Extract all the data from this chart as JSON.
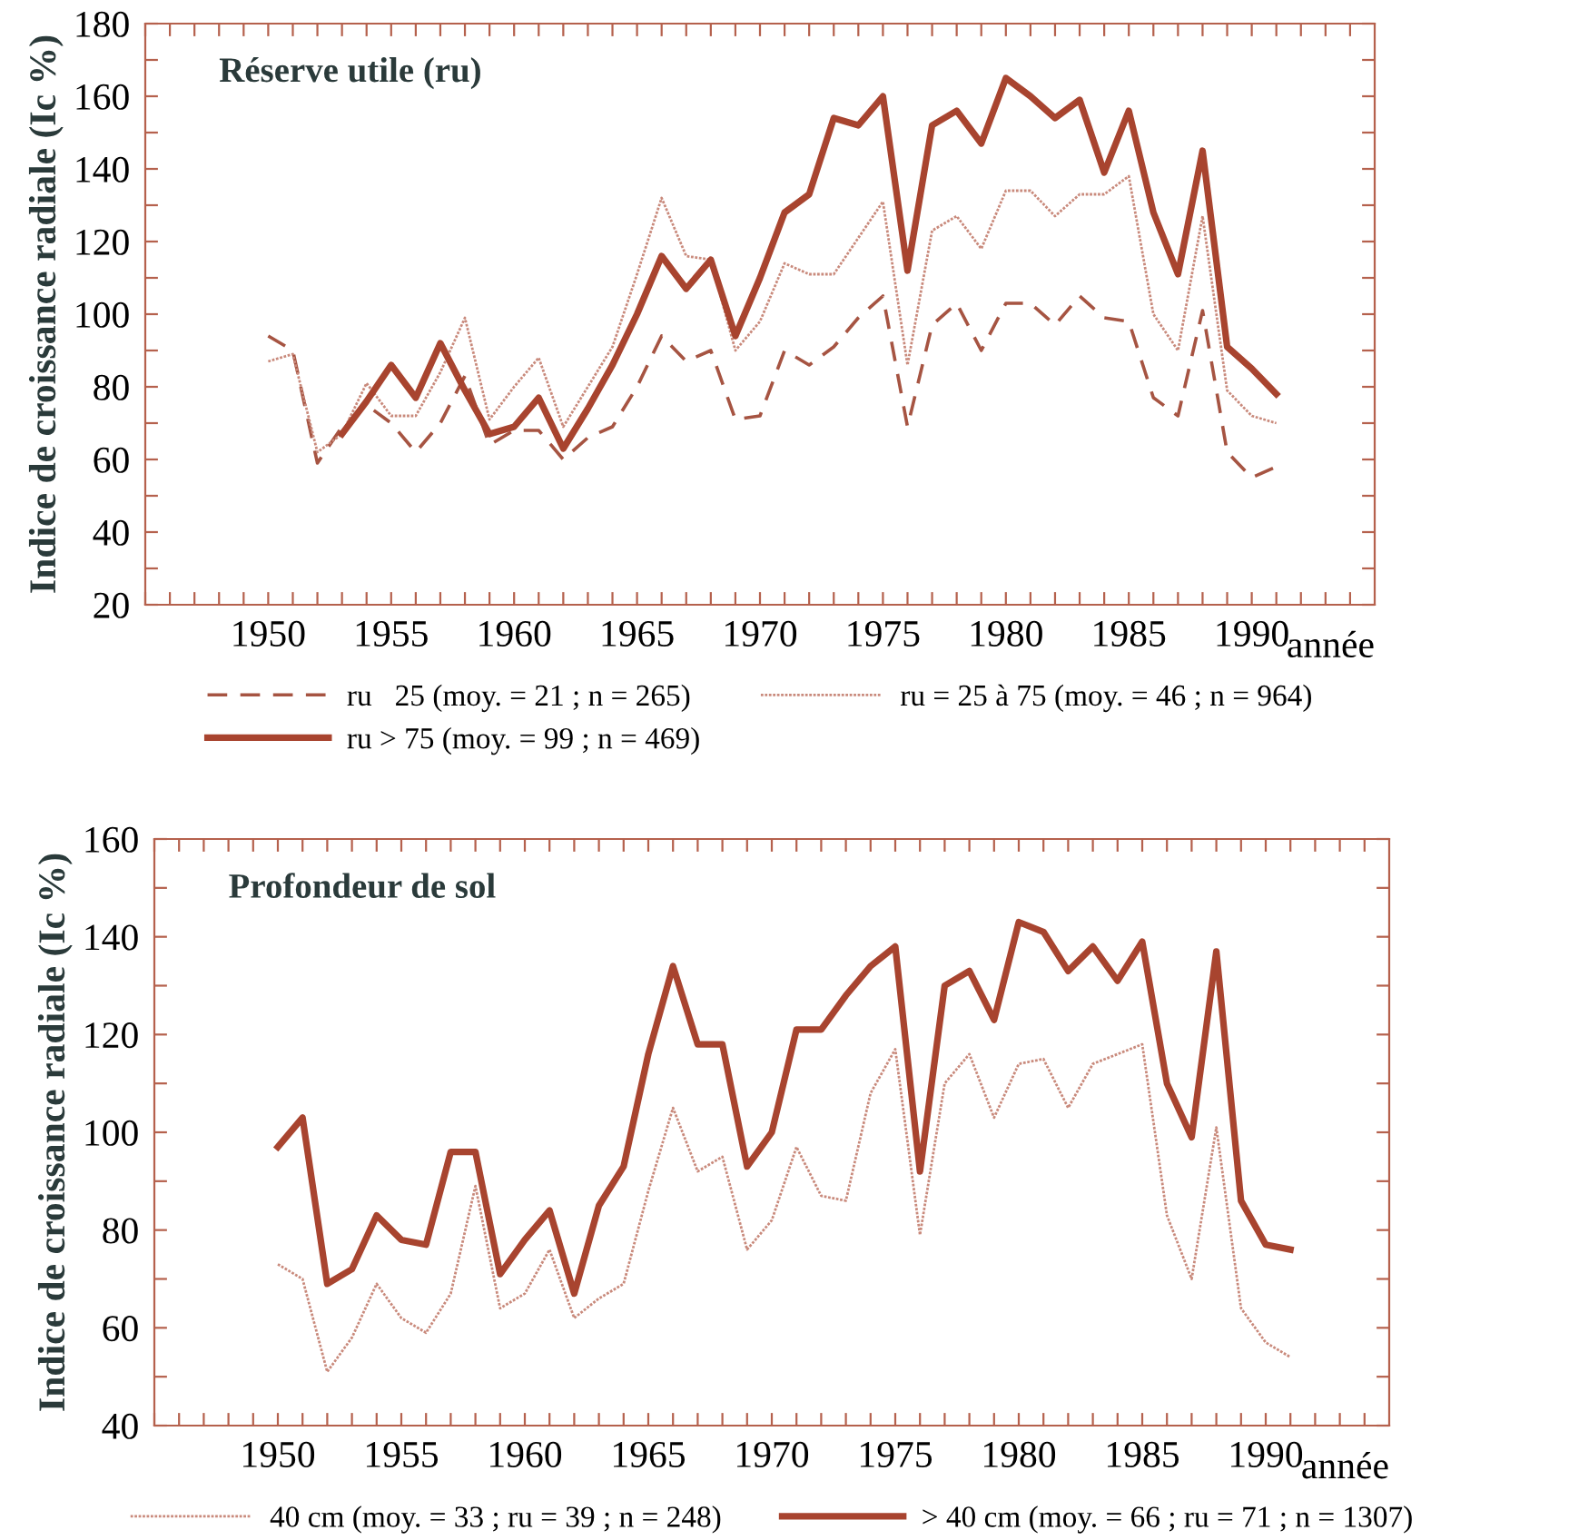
{
  "chart_data": [
    {
      "type": "line",
      "title": "Réserve utile (ru)",
      "xlabel": "année",
      "ylabel": "Indice de croissance radiale (Ic %)",
      "x": [
        1950,
        1951,
        1952,
        1953,
        1954,
        1955,
        1956,
        1957,
        1958,
        1959,
        1960,
        1961,
        1962,
        1963,
        1964,
        1965,
        1966,
        1967,
        1968,
        1969,
        1970,
        1971,
        1972,
        1973,
        1974,
        1975,
        1976,
        1977,
        1978,
        1979,
        1980,
        1981,
        1982,
        1983,
        1984,
        1985,
        1986,
        1987,
        1988,
        1989,
        1990,
        1991
      ],
      "series": [
        {
          "name": "ru   25 (moy. = 21 ; n = 265)",
          "color": "#a65442",
          "line_style": "dashed",
          "values": [
            94,
            90,
            59,
            69,
            75,
            70,
            62,
            70,
            83,
            64,
            68,
            68,
            60,
            66,
            69,
            80,
            94,
            87,
            90,
            71,
            72,
            90,
            86,
            91,
            99,
            105,
            69,
            97,
            103,
            90,
            103,
            103,
            97,
            105,
            99,
            98,
            77,
            72,
            101,
            62,
            55,
            58
          ]
        },
        {
          "name": "ru = 25 à 75 (moy. = 46 ; n = 964)",
          "color": "#c98a7c",
          "line_style": "dotted",
          "values": [
            87,
            89,
            62,
            67,
            81,
            72,
            72,
            84,
            99,
            71,
            80,
            88,
            69,
            80,
            91,
            111,
            132,
            116,
            115,
            90,
            98,
            114,
            111,
            111,
            121,
            131,
            86,
            123,
            127,
            118,
            134,
            134,
            127,
            133,
            133,
            138,
            100,
            90,
            127,
            79,
            72,
            70
          ]
        },
        {
          "name": "ru > 75 (moy. = 99 ; n = 469)",
          "color": "#a8442f",
          "line_style": "solid",
          "values": [
            null,
            null,
            null,
            67,
            76,
            86,
            77,
            92,
            79,
            67,
            69,
            77,
            63,
            74,
            86,
            100,
            116,
            107,
            115,
            94,
            110,
            128,
            133,
            154,
            152,
            160,
            112,
            152,
            156,
            147,
            165,
            160,
            154,
            159,
            139,
            156,
            128,
            111,
            145,
            91,
            85,
            78
          ]
        }
      ],
      "xlim": [
        1945,
        1995
      ],
      "xticks": [
        {
          "value": 1945,
          "label": null
        },
        {
          "value": 1946,
          "label": null
        },
        {
          "value": 1947,
          "label": null
        },
        {
          "value": 1948,
          "label": null
        },
        {
          "value": 1949,
          "label": null
        },
        1950,
        {
          "value": 1951,
          "label": null
        },
        {
          "value": 1952,
          "label": null
        },
        {
          "value": 1953,
          "label": null
        },
        {
          "value": 1954,
          "label": null
        },
        1955,
        {
          "value": 1956,
          "label": null
        },
        {
          "value": 1957,
          "label": null
        },
        {
          "value": 1958,
          "label": null
        },
        {
          "value": 1959,
          "label": null
        },
        1960,
        {
          "value": 1961,
          "label": null
        },
        {
          "value": 1962,
          "label": null
        },
        {
          "value": 1963,
          "label": null
        },
        {
          "value": 1964,
          "label": null
        },
        1965,
        {
          "value": 1966,
          "label": null
        },
        {
          "value": 1967,
          "label": null
        },
        {
          "value": 1968,
          "label": null
        },
        {
          "value": 1969,
          "label": null
        },
        1970,
        {
          "value": 1971,
          "label": null
        },
        {
          "value": 1972,
          "label": null
        },
        {
          "value": 1973,
          "label": null
        },
        {
          "value": 1974,
          "label": null
        },
        1975,
        {
          "value": 1976,
          "label": null
        },
        {
          "value": 1977,
          "label": null
        },
        {
          "value": 1978,
          "label": null
        },
        {
          "value": 1979,
          "label": null
        },
        1980,
        {
          "value": 1981,
          "label": null
        },
        {
          "value": 1982,
          "label": null
        },
        {
          "value": 1983,
          "label": null
        },
        {
          "value": 1984,
          "label": null
        },
        1985,
        {
          "value": 1986,
          "label": null
        },
        {
          "value": 1987,
          "label": null
        },
        {
          "value": 1988,
          "label": null
        },
        {
          "value": 1989,
          "label": null
        },
        1990,
        {
          "value": 1991,
          "label": null
        },
        {
          "value": 1992,
          "label": null
        },
        {
          "value": 1993,
          "label": null
        },
        {
          "value": 1994,
          "label": null
        }
      ],
      "ylim": [
        20,
        180
      ],
      "yticks": [
        20,
        {
          "value": 30,
          "label": null
        },
        40,
        {
          "value": 50,
          "label": null
        },
        60,
        {
          "value": 70,
          "label": null
        },
        80,
        {
          "value": 90,
          "label": null
        },
        100,
        {
          "value": 110,
          "label": null
        },
        120,
        {
          "value": 130,
          "label": null
        },
        140,
        {
          "value": 150,
          "label": null
        },
        160,
        {
          "value": 170,
          "label": null
        },
        180
      ],
      "grid": false,
      "legend": "bottom",
      "marker": "none"
    },
    {
      "type": "line",
      "title": "Profondeur de sol",
      "xlabel": "année",
      "ylabel": "Indice de croissance radiale (Ic %)",
      "x": [
        1950,
        1951,
        1952,
        1953,
        1954,
        1955,
        1956,
        1957,
        1958,
        1959,
        1960,
        1961,
        1962,
        1963,
        1964,
        1965,
        1966,
        1967,
        1968,
        1969,
        1970,
        1971,
        1972,
        1973,
        1974,
        1975,
        1976,
        1977,
        1978,
        1979,
        1980,
        1981,
        1982,
        1983,
        1984,
        1985,
        1986,
        1987,
        1988,
        1989,
        1990,
        1991
      ],
      "series": [
        {
          "name": "40 cm (moy. = 33 ; ru = 39 ; n = 248)",
          "color": "#c98a7c",
          "line_style": "dotted",
          "values": [
            73,
            70,
            51,
            58,
            69,
            62,
            59,
            67,
            89,
            64,
            67,
            76,
            62,
            66,
            69,
            88,
            105,
            92,
            95,
            76,
            82,
            97,
            87,
            86,
            108,
            117,
            79,
            110,
            116,
            103,
            114,
            115,
            105,
            114,
            116,
            118,
            83,
            70,
            101,
            64,
            57,
            54
          ]
        },
        {
          "name": "> 40 cm (moy. = 66 ; ru = 71 ; n = 1307)",
          "color": "#a8442f",
          "line_style": "solid",
          "values": [
            97,
            103,
            69,
            72,
            83,
            78,
            77,
            96,
            96,
            71,
            78,
            84,
            67,
            85,
            93,
            116,
            134,
            118,
            118,
            93,
            100,
            121,
            121,
            128,
            134,
            138,
            92,
            130,
            133,
            123,
            143,
            141,
            133,
            138,
            131,
            139,
            110,
            99,
            137,
            86,
            77,
            76
          ]
        }
      ],
      "xlim": [
        1945,
        1995
      ],
      "xticks": [
        {
          "value": 1945,
          "label": null
        },
        {
          "value": 1946,
          "label": null
        },
        {
          "value": 1947,
          "label": null
        },
        {
          "value": 1948,
          "label": null
        },
        {
          "value": 1949,
          "label": null
        },
        1950,
        {
          "value": 1951,
          "label": null
        },
        {
          "value": 1952,
          "label": null
        },
        {
          "value": 1953,
          "label": null
        },
        {
          "value": 1954,
          "label": null
        },
        1955,
        {
          "value": 1956,
          "label": null
        },
        {
          "value": 1957,
          "label": null
        },
        {
          "value": 1958,
          "label": null
        },
        {
          "value": 1959,
          "label": null
        },
        1960,
        {
          "value": 1961,
          "label": null
        },
        {
          "value": 1962,
          "label": null
        },
        {
          "value": 1963,
          "label": null
        },
        {
          "value": 1964,
          "label": null
        },
        1965,
        {
          "value": 1966,
          "label": null
        },
        {
          "value": 1967,
          "label": null
        },
        {
          "value": 1968,
          "label": null
        },
        {
          "value": 1969,
          "label": null
        },
        1970,
        {
          "value": 1971,
          "label": null
        },
        {
          "value": 1972,
          "label": null
        },
        {
          "value": 1973,
          "label": null
        },
        {
          "value": 1974,
          "label": null
        },
        1975,
        {
          "value": 1976,
          "label": null
        },
        {
          "value": 1977,
          "label": null
        },
        {
          "value": 1978,
          "label": null
        },
        {
          "value": 1979,
          "label": null
        },
        1980,
        {
          "value": 1981,
          "label": null
        },
        {
          "value": 1982,
          "label": null
        },
        {
          "value": 1983,
          "label": null
        },
        {
          "value": 1984,
          "label": null
        },
        1985,
        {
          "value": 1986,
          "label": null
        },
        {
          "value": 1987,
          "label": null
        },
        {
          "value": 1988,
          "label": null
        },
        {
          "value": 1989,
          "label": null
        },
        1990,
        {
          "value": 1991,
          "label": null
        },
        {
          "value": 1992,
          "label": null
        },
        {
          "value": 1993,
          "label": null
        },
        {
          "value": 1994,
          "label": null
        }
      ],
      "ylim": [
        40,
        160
      ],
      "yticks": [
        40,
        {
          "value": 50,
          "label": null
        },
        60,
        {
          "value": 70,
          "label": null
        },
        80,
        {
          "value": 90,
          "label": null
        },
        100,
        {
          "value": 110,
          "label": null
        },
        120,
        {
          "value": 130,
          "label": null
        },
        140,
        {
          "value": 150,
          "label": null
        },
        160
      ],
      "grid": false,
      "legend": "bottom",
      "marker": "none"
    }
  ]
}
